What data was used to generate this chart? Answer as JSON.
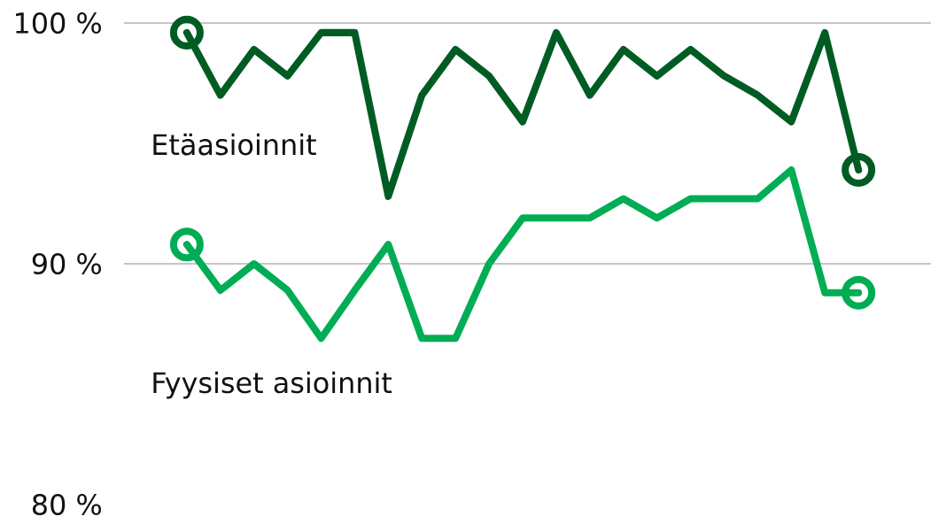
{
  "chart_data": {
    "type": "line",
    "categories": [
      null,
      null,
      null,
      null,
      null,
      null,
      null,
      null,
      null,
      null,
      null,
      null,
      null,
      null,
      null,
      null,
      null,
      null,
      null,
      null,
      null
    ],
    "ylim": [
      80,
      100
    ],
    "yticks": [
      {
        "value": 80,
        "label": "80 %"
      },
      {
        "value": 90,
        "label": "90 %"
      },
      {
        "value": 100,
        "label": "100 %"
      }
    ],
    "grid": "y",
    "line_style": "solid",
    "series": [
      {
        "name": "Etäasioinnit",
        "color": "#005c23",
        "values": [
          99.6,
          97.0,
          98.9,
          97.8,
          99.6,
          99.6,
          92.8,
          97.0,
          98.9,
          97.8,
          95.9,
          99.6,
          97.0,
          98.9,
          97.8,
          98.9,
          97.8,
          97.0,
          95.9,
          99.6,
          93.9
        ]
      },
      {
        "name": "Fyysiset asioinnit",
        "color": "#00ad54",
        "values": [
          90.8,
          88.9,
          90.0,
          88.9,
          86.9,
          88.9,
          90.8,
          86.9,
          86.9,
          90.0,
          91.9,
          91.9,
          91.9,
          92.7,
          91.9,
          92.7,
          92.7,
          92.7,
          93.9,
          88.8,
          88.8
        ]
      },
      {
        "type": "scatter",
        "marker": "circle",
        "color": "#005c23",
        "values": [
          99.6,
          null,
          null,
          null,
          null,
          null,
          null,
          null,
          null,
          null,
          null,
          null,
          null,
          null,
          null,
          null,
          null,
          null,
          null,
          null,
          93.9
        ]
      },
      {
        "type": "scatter",
        "marker": "circle",
        "color": "#00ad54",
        "values": [
          90.8,
          null,
          null,
          null,
          null,
          null,
          null,
          null,
          null,
          null,
          null,
          null,
          null,
          null,
          null,
          null,
          null,
          null,
          null,
          null,
          88.8
        ]
      }
    ]
  }
}
